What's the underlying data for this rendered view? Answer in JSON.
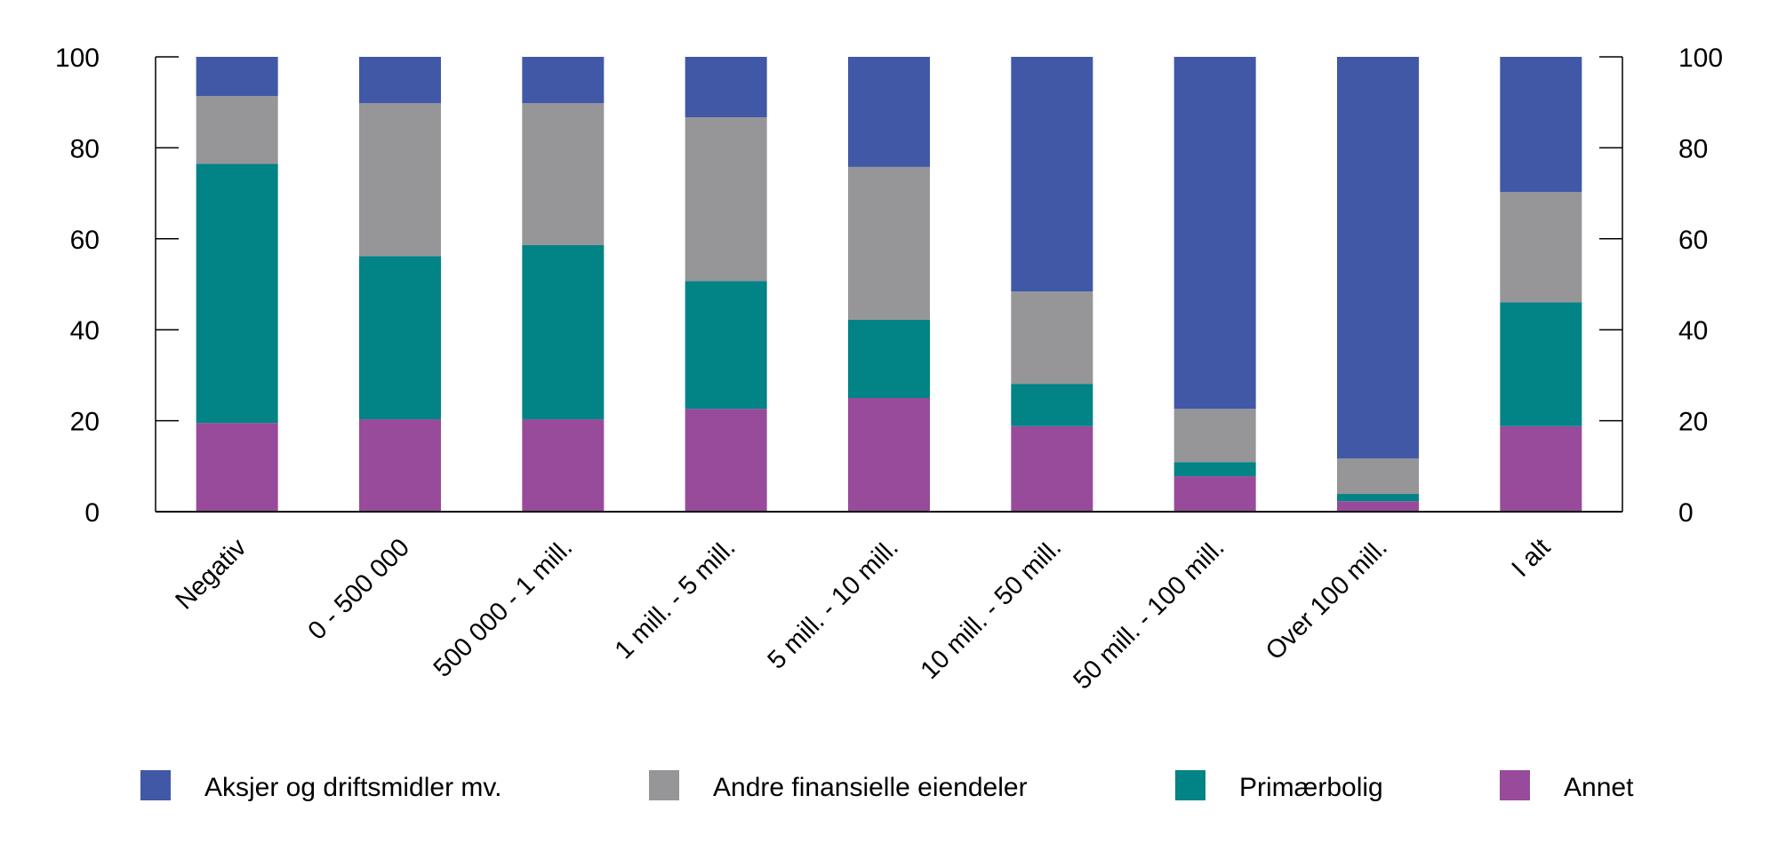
{
  "chart_data": {
    "type": "bar",
    "stacked": true,
    "title": "",
    "xlabel": "",
    "ylabel": "",
    "ylim": [
      0,
      100
    ],
    "yticks": [
      0,
      20,
      40,
      60,
      80,
      100
    ],
    "secondary_y_axis": true,
    "grid": false,
    "legend_position": "bottom",
    "categories": [
      "Negativ",
      "0 - 500 000",
      "500 000 - 1 mill.",
      "1 mill. - 5 mill.",
      "5 mill. - 10 mill.",
      "10 mill. - 50 mill.",
      "50 mill. - 100 mill.",
      "Over 100 mill.",
      "I alt"
    ],
    "series": [
      {
        "name": "Annet",
        "color": "#984b9a",
        "values": [
          19.5,
          20.3,
          20.3,
          22.6,
          25.0,
          18.8,
          7.8,
          2.3,
          18.8
        ]
      },
      {
        "name": "Primærbolig",
        "color": "#028385",
        "values": [
          57.0,
          35.9,
          38.3,
          28.1,
          17.2,
          9.3,
          3.1,
          1.6,
          27.2
        ]
      },
      {
        "name": "Andre finansielle eiendeler",
        "color": "#969598",
        "values": [
          14.9,
          33.6,
          31.2,
          36.0,
          33.6,
          20.3,
          11.7,
          7.8,
          24.3
        ]
      },
      {
        "name": "Aksjer og driftsmidler mv.",
        "color": "#4158a7",
        "values": [
          8.6,
          10.2,
          10.2,
          13.3,
          24.2,
          51.6,
          77.4,
          88.3,
          29.7
        ]
      }
    ],
    "legend_order": [
      "Aksjer og driftsmidler mv.",
      "Andre finansielle eiendeler",
      "Primærbolig",
      "Annet"
    ]
  }
}
